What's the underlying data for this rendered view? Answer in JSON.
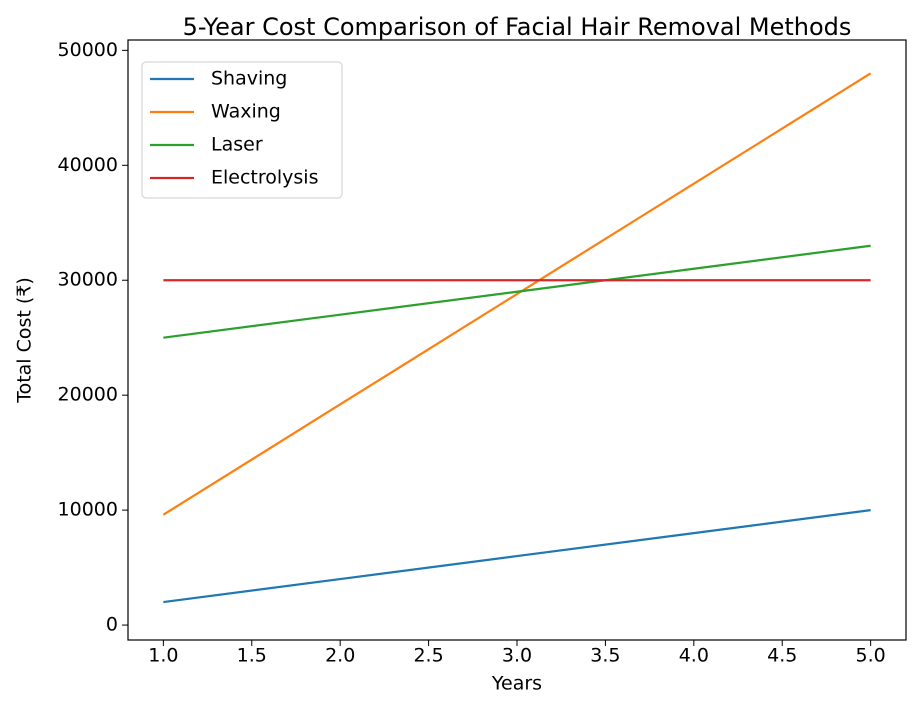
{
  "chart_data": {
    "type": "line",
    "title": "5-Year Cost Comparison of Facial Hair Removal Methods",
    "x_label": "Years",
    "y_label": "Total Cost (₹)",
    "x": [
      1,
      2,
      3,
      4,
      5
    ],
    "series": [
      {
        "name": "Shaving",
        "color": "#1f77b4",
        "values": [
          2000,
          4000,
          6000,
          8000,
          10000
        ]
      },
      {
        "name": "Waxing",
        "color": "#ff7f0e",
        "values": [
          9600,
          19200,
          28800,
          38400,
          48000
        ]
      },
      {
        "name": "Laser",
        "color": "#2ca02c",
        "values": [
          25000,
          27000,
          29000,
          31000,
          33000
        ]
      },
      {
        "name": "Electrolysis",
        "color": "#d62728",
        "values": [
          30000,
          30000,
          30000,
          30000,
          30000
        ]
      }
    ],
    "xlim": [
      0.8,
      5.2
    ],
    "xticks": [
      {
        "value": 1,
        "label": "1.0"
      },
      {
        "value": 1.5,
        "label": "1.5"
      },
      {
        "value": 2,
        "label": "2.0"
      },
      {
        "value": 2.5,
        "label": "2.5"
      },
      {
        "value": 3,
        "label": "3.0"
      },
      {
        "value": 3.5,
        "label": "3.5"
      },
      {
        "value": 4,
        "label": "4.0"
      },
      {
        "value": 4.5,
        "label": "4.5"
      },
      {
        "value": 5,
        "label": "5.0"
      }
    ],
    "ylim": [
      -1300,
      50900
    ],
    "yticks": [
      0,
      10000,
      20000,
      30000,
      40000,
      50000
    ],
    "legend": "upper left",
    "grid": false
  }
}
